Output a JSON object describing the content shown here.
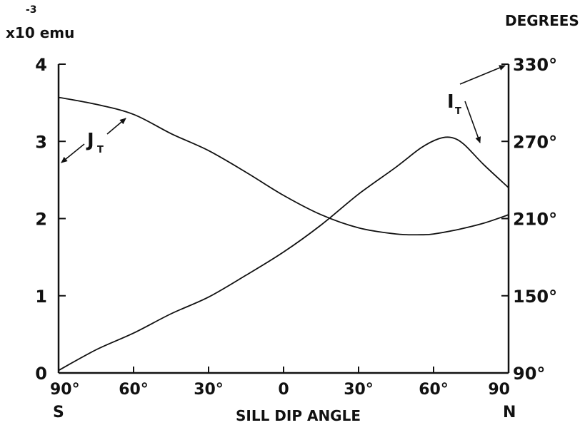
{
  "chart_data": {
    "type": "line",
    "xlabel": "SILL DIP ANGLE",
    "x_tick_labels": [
      "90°",
      "60°",
      "30°",
      "0",
      "30°",
      "60°",
      "90"
    ],
    "x_end_labels": {
      "left": "S",
      "right": "N"
    },
    "x_range": [
      -90,
      90
    ],
    "left_axis": {
      "label_exponent": "-3",
      "label": "x10 emu",
      "range": [
        0,
        4
      ],
      "tick_labels": [
        "0",
        "1",
        "2",
        "3",
        "4"
      ]
    },
    "right_axis": {
      "label": "DEGREES",
      "range": [
        90,
        330
      ],
      "tick_labels": [
        "90°",
        "150°",
        "210°",
        "270°",
        "330°"
      ]
    },
    "series": [
      {
        "name": "J",
        "subscript": "T",
        "axis": "left",
        "x": [
          -90,
          -75,
          -60,
          -45,
          -30,
          -15,
          0,
          15,
          30,
          45,
          55,
          60,
          70,
          80,
          90
        ],
        "y": [
          3.57,
          3.48,
          3.35,
          3.1,
          2.88,
          2.6,
          2.3,
          2.05,
          1.88,
          1.8,
          1.79,
          1.8,
          1.86,
          1.94,
          2.05
        ]
      },
      {
        "name": "I",
        "subscript": "T",
        "axis": "right",
        "x": [
          -90,
          -75,
          -60,
          -45,
          -30,
          -15,
          0,
          15,
          30,
          45,
          55,
          62,
          67,
          72,
          80,
          90
        ],
        "y": [
          92,
          108,
          121,
          136,
          149,
          166,
          184,
          205,
          229,
          250,
          265,
          272,
          273,
          268,
          252,
          234
        ]
      }
    ],
    "grid": false,
    "legend": "none"
  }
}
